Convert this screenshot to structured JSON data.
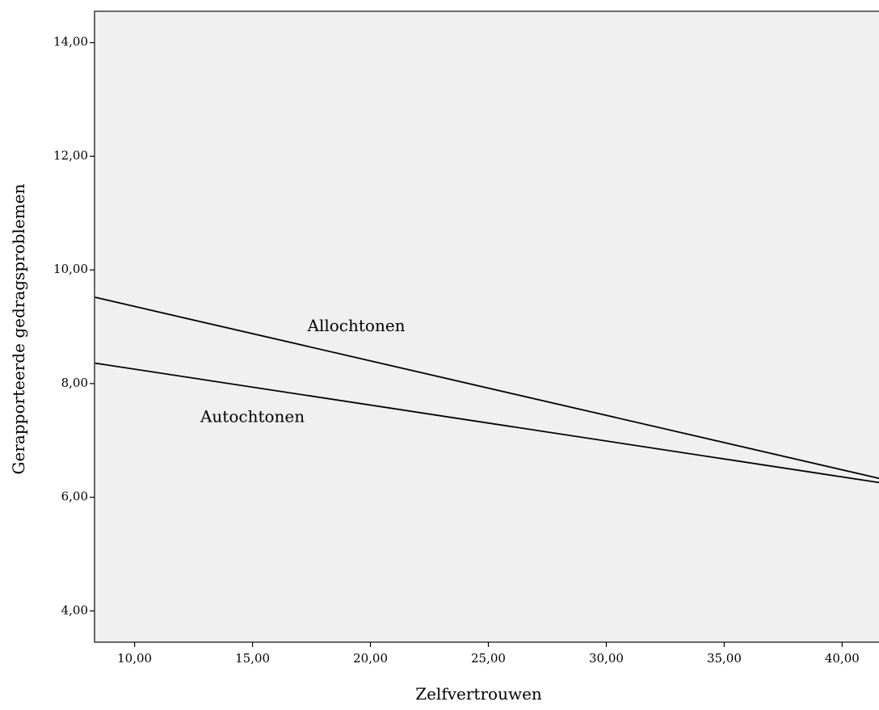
{
  "chart_data": {
    "type": "line",
    "xlabel": "Zelfvertrouwen",
    "ylabel": "Gerapporteerde gedragsproblemen",
    "xlim": [
      8.3,
      41.7
    ],
    "ylim": [
      3.45,
      14.55
    ],
    "x_ticks": [
      10,
      15,
      20,
      25,
      30,
      35,
      40
    ],
    "x_tick_labels": [
      "10,00",
      "15,00",
      "20,00",
      "25,00",
      "30,00",
      "35,00",
      "40,00"
    ],
    "y_ticks": [
      4,
      6,
      8,
      10,
      12,
      14
    ],
    "y_tick_labels": [
      "4,00",
      "6,00",
      "8,00",
      "10,00",
      "12,00",
      "14,00"
    ],
    "grid": false,
    "legend": "none",
    "series": [
      {
        "name": "Allochtonen",
        "x": [
          8.3,
          41.7
        ],
        "y": [
          9.52,
          6.32
        ],
        "label_at": [
          19.4,
          9.0
        ]
      },
      {
        "name": "Autochtonen",
        "x": [
          8.3,
          41.7
        ],
        "y": [
          8.36,
          6.25
        ],
        "label_at": [
          15.0,
          7.4
        ]
      }
    ],
    "colors": {
      "plot_background": "#f0f0f0",
      "line": "#000000",
      "frame": "#444444"
    }
  }
}
